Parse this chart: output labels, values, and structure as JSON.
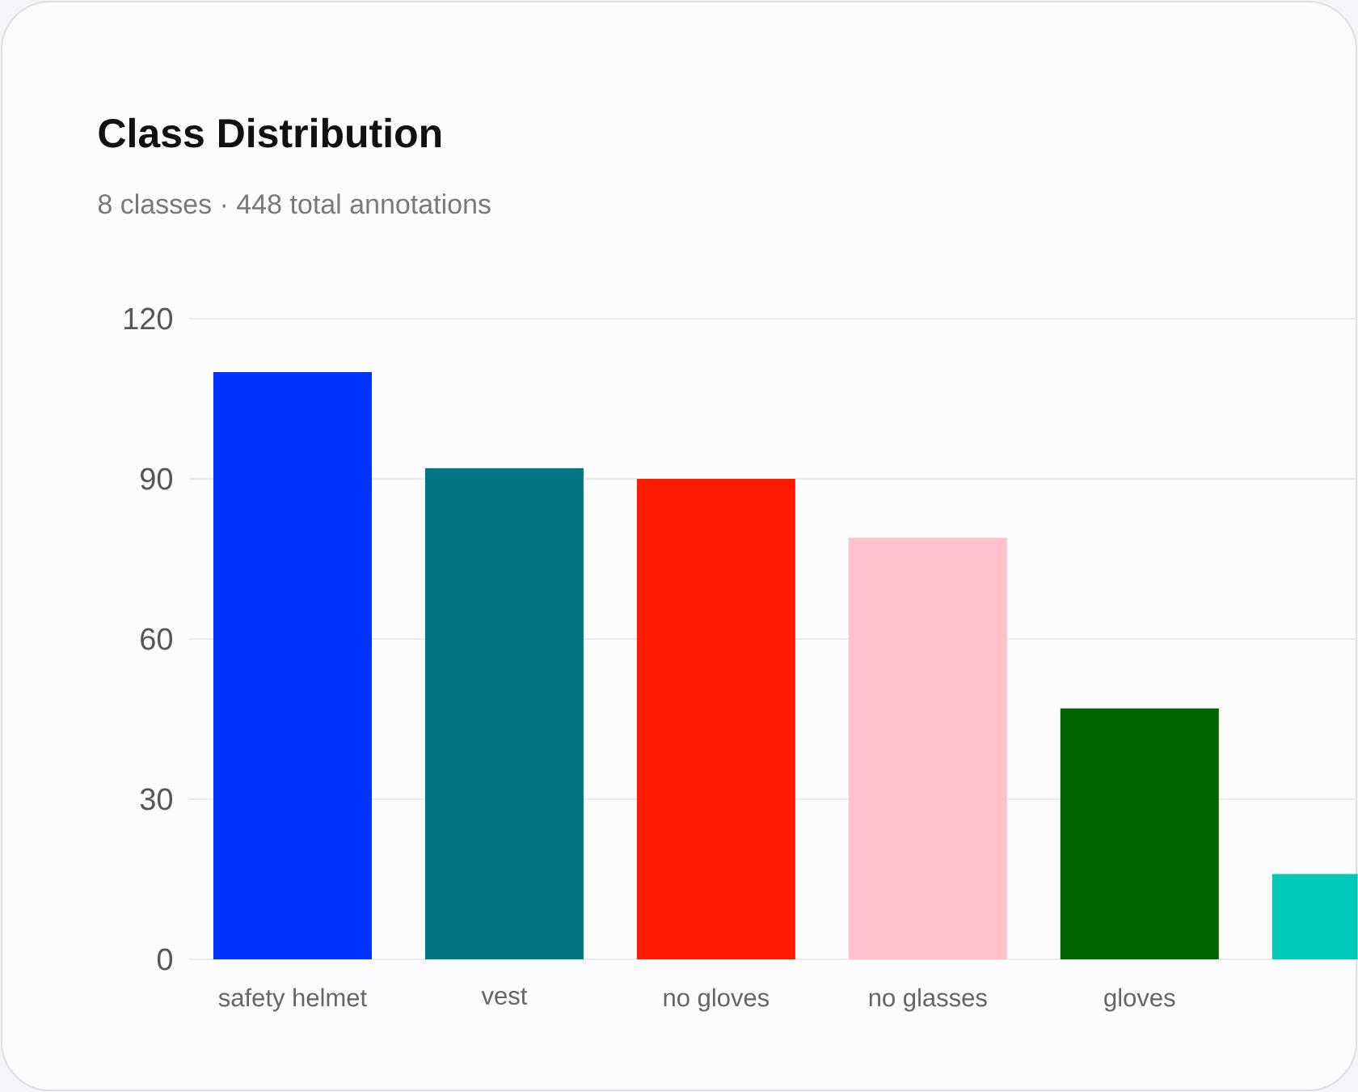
{
  "chart_data": {
    "type": "bar",
    "title": "Class Distribution",
    "subtitle": "8 classes · 448 total annotations",
    "categories": [
      "safety helmet",
      "vest",
      "no gloves",
      "no glasses",
      "gloves",
      null
    ],
    "values": [
      110,
      92,
      90,
      79,
      47,
      16
    ],
    "colors": [
      "#0033ff",
      "#007681",
      "#ff1a00",
      "#ffc2cc",
      "#006400",
      "#00c9b8"
    ],
    "ylim": [
      0,
      120
    ],
    "yticks": [
      0,
      30,
      60,
      90,
      120
    ],
    "grid": "y"
  }
}
